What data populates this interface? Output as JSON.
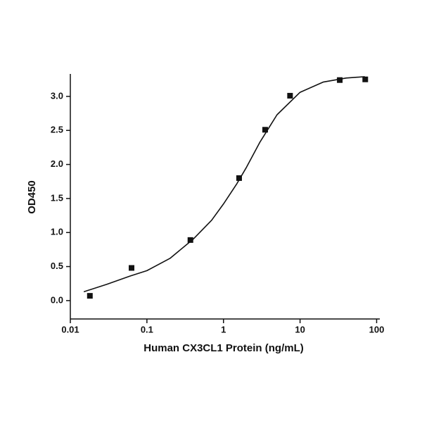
{
  "chart_data": {
    "type": "scatter",
    "x_label": "Human CX3CL1 Protein (ng/mL)",
    "y_label": "OD450",
    "x_scale": "log",
    "xlim": [
      0.01,
      110
    ],
    "ylim": [
      -0.27,
      3.33
    ],
    "xticks": [
      0.01,
      0.1,
      1,
      10,
      100
    ],
    "yticks": [
      {
        "value": 0,
        "label": "0.0"
      },
      0.5,
      {
        "value": 1,
        "label": "1.0"
      },
      1.5,
      {
        "value": 2,
        "label": "2.0"
      },
      2.5,
      {
        "value": 3,
        "label": "3.0"
      }
    ],
    "series": [
      {
        "mode": "markers",
        "color": "#111111",
        "x": [
          0.018,
          0.063,
          0.37,
          1.6,
          3.5,
          7.4,
          33,
          71
        ],
        "values": [
          0.07,
          0.48,
          0.89,
          1.8,
          2.51,
          3.01,
          3.24,
          3.25
        ]
      },
      {
        "mode": "line",
        "color": "#111111",
        "x": [
          0.015,
          0.03,
          0.06,
          0.1,
          0.2,
          0.4,
          0.7,
          1,
          1.5,
          2,
          3,
          5,
          10,
          20,
          40,
          70
        ],
        "values": [
          0.13,
          0.24,
          0.36,
          0.44,
          0.62,
          0.9,
          1.18,
          1.42,
          1.72,
          1.96,
          2.33,
          2.73,
          3.06,
          3.21,
          3.27,
          3.29
        ]
      }
    ]
  }
}
